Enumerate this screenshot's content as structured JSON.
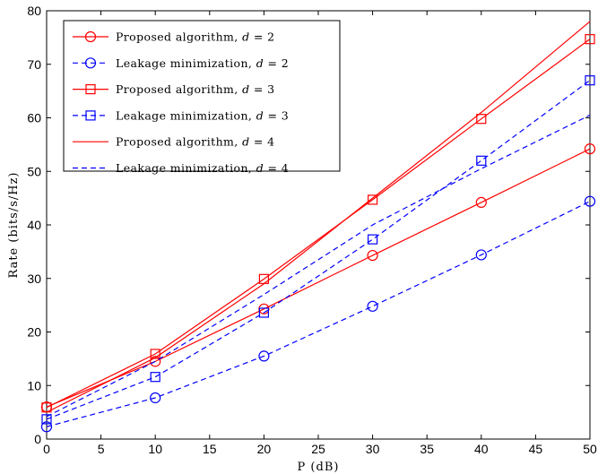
{
  "chart_data": {
    "type": "line",
    "title": "",
    "xlabel": "P (dB)",
    "ylabel": "Rate (bits/s/Hz)",
    "xlim": [
      0,
      50
    ],
    "ylim": [
      0,
      80
    ],
    "xticks": [
      0,
      5,
      10,
      15,
      20,
      25,
      30,
      35,
      40,
      45,
      50
    ],
    "yticks": [
      0,
      10,
      20,
      30,
      40,
      50,
      60,
      70,
      80
    ],
    "grid": false,
    "legend_position": "top-left",
    "x": [
      0,
      10,
      20,
      30,
      40,
      50
    ],
    "series": [
      {
        "name": "Proposed algorithm, d = 2",
        "values": [
          6.0,
          14.5,
          24.3,
          34.3,
          44.2,
          54.2
        ],
        "color": "#ff0000",
        "dash": "solid",
        "marker": "circle"
      },
      {
        "name": "Leakage minimization, d = 2",
        "values": [
          2.3,
          7.7,
          15.5,
          24.8,
          34.4,
          44.4
        ],
        "color": "#0000ff",
        "dash": "dashed",
        "marker": "circle"
      },
      {
        "name": "Proposed algorithm, d = 3",
        "values": [
          5.9,
          15.9,
          29.9,
          44.7,
          59.8,
          74.7
        ],
        "color": "#ff0000",
        "dash": "solid",
        "marker": "square"
      },
      {
        "name": "Leakage minimization, d = 3",
        "values": [
          3.7,
          11.6,
          23.6,
          37.3,
          52.0,
          67.0
        ],
        "color": "#0000ff",
        "dash": "dashed",
        "marker": "square"
      },
      {
        "name": "Proposed algorithm, d = 4",
        "values": [
          5.0,
          15.2,
          29.0,
          45.0,
          61.0,
          78.0
        ],
        "color": "#ff0000",
        "dash": "solid",
        "marker": "none"
      },
      {
        "name": "Leakage minimization, d = 4",
        "values": [
          4.2,
          14.5,
          27.0,
          40.0,
          50.5,
          60.5
        ],
        "color": "#0000ff",
        "dash": "dashed",
        "marker": "none"
      }
    ],
    "legend": [
      {
        "text": "Proposed algorithm, ",
        "var": "d",
        "eq": " = 2"
      },
      {
        "text": "Leakage minimization, ",
        "var": "d",
        "eq": " = 2"
      },
      {
        "text": "Proposed algorithm, ",
        "var": "d",
        "eq": " = 3"
      },
      {
        "text": "Leakage minimization, ",
        "var": "d",
        "eq": " = 3"
      },
      {
        "text": "Proposed algorithm, ",
        "var": "d",
        "eq": " = 4"
      },
      {
        "text": "Leakage minimization, ",
        "var": "d",
        "eq": " = 4"
      }
    ]
  }
}
